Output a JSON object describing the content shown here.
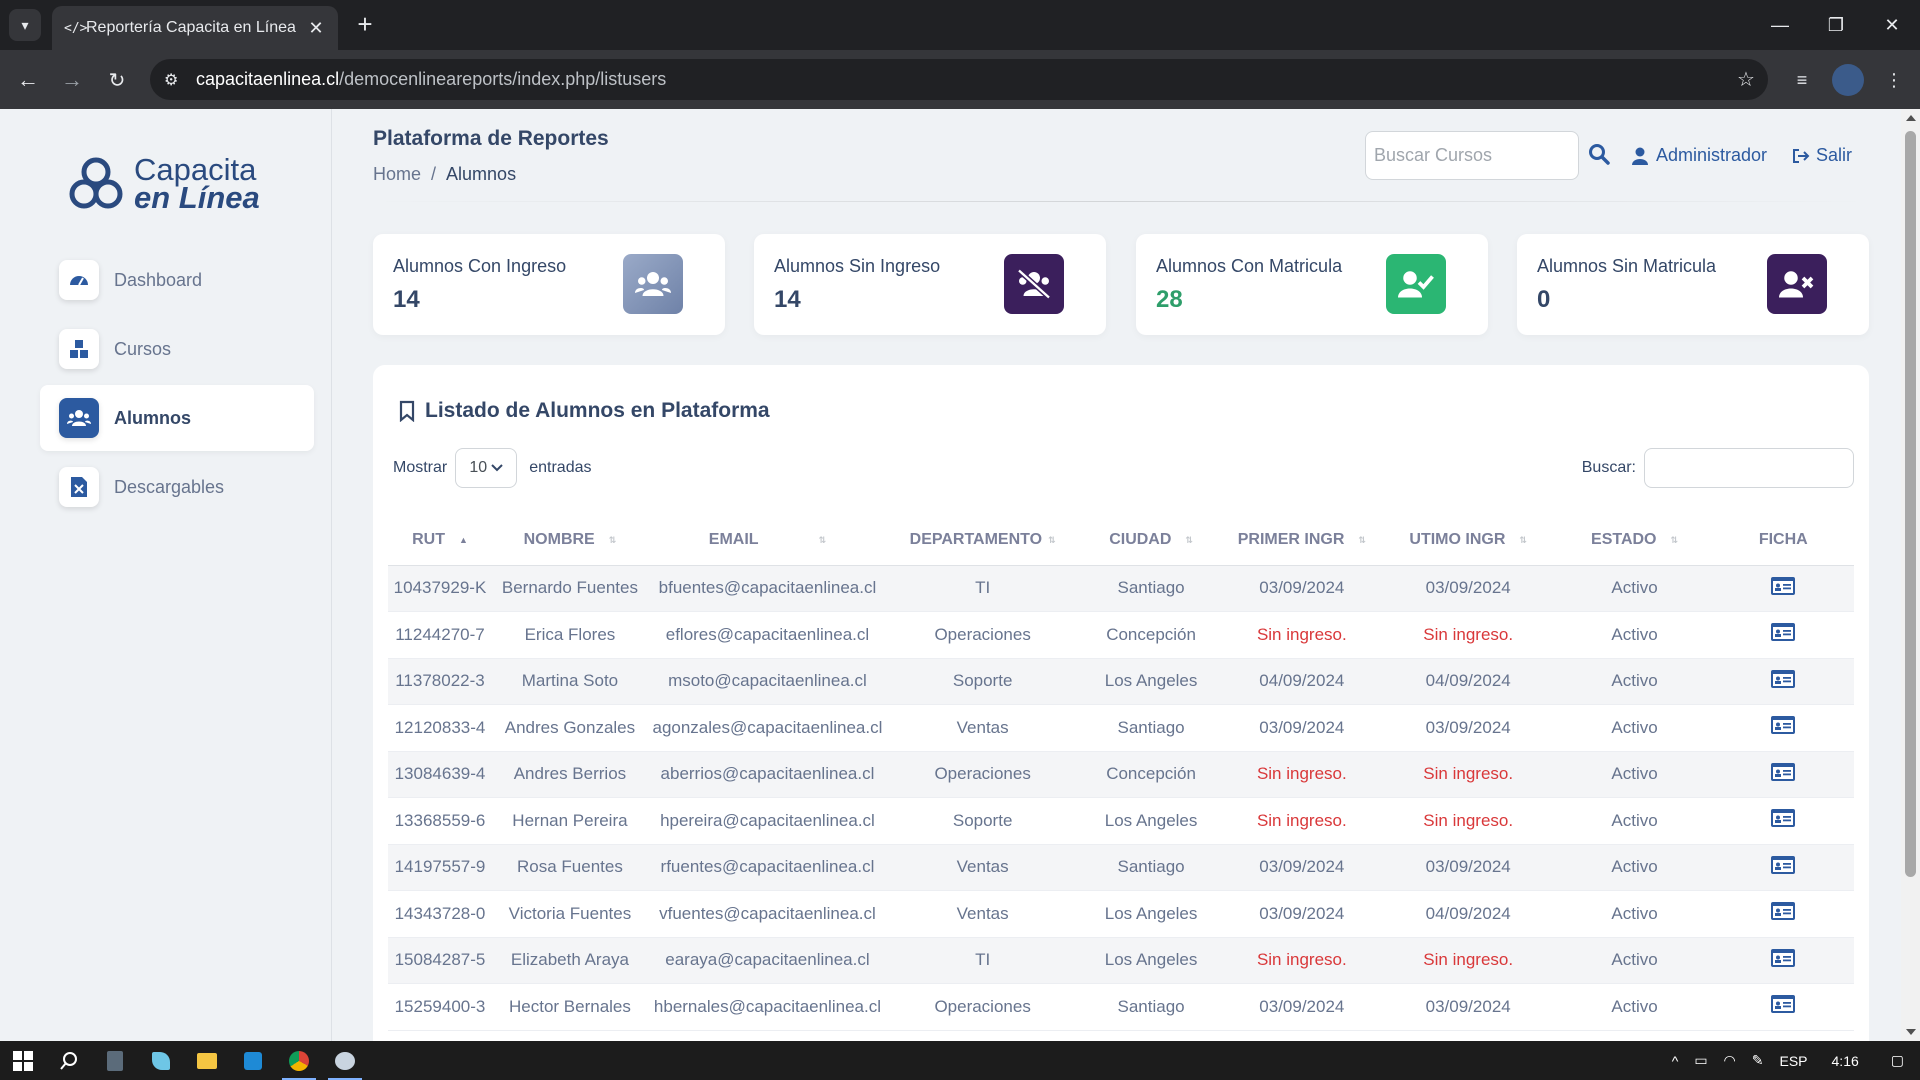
{
  "browser": {
    "tab_title": "Reportería Capacita en Línea",
    "url_host": "capacitaenlinea.cl",
    "url_path": "/democenlineareports/index.php/listusers"
  },
  "sidebar": {
    "logo_line1": "Capacita",
    "logo_line2": "en Línea",
    "items": [
      {
        "label": "Dashboard",
        "icon": "gauge-icon",
        "active": false
      },
      {
        "label": "Cursos",
        "icon": "cubes-icon",
        "active": false
      },
      {
        "label": "Alumnos",
        "icon": "users-icon",
        "active": true
      },
      {
        "label": "Descargables",
        "icon": "excel-file-icon",
        "active": false
      }
    ]
  },
  "header": {
    "title": "Plataforma de Reportes",
    "breadcrumb": {
      "home": "Home",
      "separator": "/",
      "current": "Alumnos"
    },
    "search_placeholder": "Buscar Cursos",
    "user": "Administrador",
    "logout": "Salir"
  },
  "stats": [
    {
      "label": "Alumnos Con Ingreso",
      "value": "14",
      "color": "#8a9bbd",
      "icon": "users-icon"
    },
    {
      "label": "Alumnos Sin Ingreso",
      "value": "14",
      "color": "#3b1f5c",
      "icon": "users-slash-icon"
    },
    {
      "label": "Alumnos Con Matricula",
      "value": "28",
      "color": "#2bb673",
      "icon": "user-check-icon"
    },
    {
      "label": "Alumnos Sin Matricula",
      "value": "0",
      "color": "#3b1f5c",
      "icon": "user-xmark-icon"
    }
  ],
  "table_card": {
    "title": "Listado de Alumnos en Plataforma",
    "show_label": "Mostrar",
    "page_length": "10",
    "entries_label": "entradas",
    "search_label": "Buscar:",
    "columns": [
      "RUT",
      "NOMBRE",
      "EMAIL",
      "DEPARTAMENTO",
      "CIUDAD",
      "PRIMER INGR",
      "UTIMO INGR",
      "ESTADO",
      "FICHA"
    ],
    "rows": [
      [
        "10437929-K",
        "Bernardo Fuentes",
        "bfuentes@capacitaenlinea.cl",
        "TI",
        "Santiago",
        "03/09/2024",
        "03/09/2024",
        "Activo"
      ],
      [
        "11244270-7",
        "Erica Flores",
        "eflores@capacitaenlinea.cl",
        "Operaciones",
        "Concepción",
        "Sin ingreso.",
        "Sin ingreso.",
        "Activo"
      ],
      [
        "11378022-3",
        "Martina Soto",
        "msoto@capacitaenlinea.cl",
        "Soporte",
        "Los Angeles",
        "04/09/2024",
        "04/09/2024",
        "Activo"
      ],
      [
        "12120833-4",
        "Andres Gonzales",
        "agonzales@capacitaenlinea.cl",
        "Ventas",
        "Santiago",
        "03/09/2024",
        "03/09/2024",
        "Activo"
      ],
      [
        "13084639-4",
        "Andres Berrios",
        "aberrios@capacitaenlinea.cl",
        "Operaciones",
        "Concepción",
        "Sin ingreso.",
        "Sin ingreso.",
        "Activo"
      ],
      [
        "13368559-6",
        "Hernan Pereira",
        "hpereira@capacitaenlinea.cl",
        "Soporte",
        "Los Angeles",
        "Sin ingreso.",
        "Sin ingreso.",
        "Activo"
      ],
      [
        "14197557-9",
        "Rosa Fuentes",
        "rfuentes@capacitaenlinea.cl",
        "Ventas",
        "Santiago",
        "03/09/2024",
        "03/09/2024",
        "Activo"
      ],
      [
        "14343728-0",
        "Victoria Fuentes",
        "vfuentes@capacitaenlinea.cl",
        "Ventas",
        "Los Angeles",
        "03/09/2024",
        "04/09/2024",
        "Activo"
      ],
      [
        "15084287-5",
        "Elizabeth Araya",
        "earaya@capacitaenlinea.cl",
        "TI",
        "Los Angeles",
        "Sin ingreso.",
        "Sin ingreso.",
        "Activo"
      ],
      [
        "15259400-3",
        "Hector Bernales",
        "hbernales@capacitaenlinea.cl",
        "Operaciones",
        "Santiago",
        "03/09/2024",
        "03/09/2024",
        "Activo"
      ]
    ]
  },
  "taskbar": {
    "lang": "ESP",
    "time": "4:16"
  }
}
